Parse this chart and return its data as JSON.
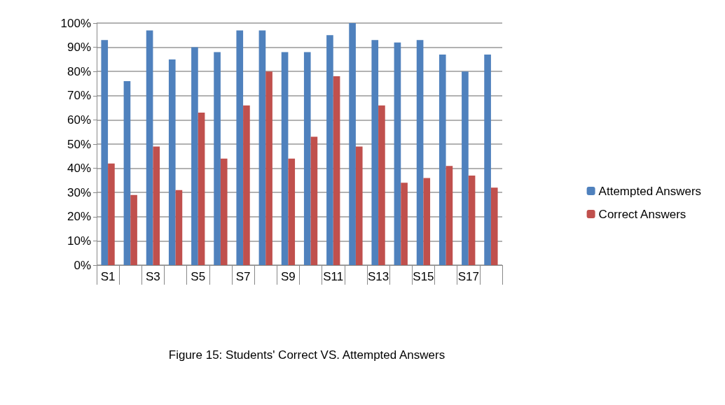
{
  "chart_data": {
    "type": "bar",
    "title": "Figure 15: Students' Correct VS. Attempted Answers",
    "categories": [
      "S1",
      null,
      "S3",
      null,
      "S5",
      null,
      "S7",
      null,
      "S9",
      null,
      "S11",
      null,
      "S13",
      null,
      "S15",
      null,
      "S17",
      null
    ],
    "series": [
      {
        "name": "Attempted Answers",
        "color": "#4f81bd",
        "values": [
          93,
          76,
          97,
          85,
          90,
          88,
          97,
          97,
          88,
          88,
          95,
          100,
          93,
          92,
          93,
          87,
          80,
          87
        ]
      },
      {
        "name": "Correct Answers",
        "color": "#c0504d",
        "values": [
          42,
          29,
          49,
          31,
          63,
          44,
          66,
          80,
          44,
          53,
          78,
          49,
          66,
          34,
          36,
          41,
          37,
          32
        ]
      }
    ],
    "ylim": [
      0,
      100
    ],
    "yticks": [
      {
        "value": 0,
        "label": "0%"
      },
      {
        "value": 10,
        "label": "10%"
      },
      {
        "value": 20,
        "label": "20%"
      },
      {
        "value": 30,
        "label": "30%"
      },
      {
        "value": 40,
        "label": "40%"
      },
      {
        "value": 50,
        "label": "50%"
      },
      {
        "value": 60,
        "label": "60%"
      },
      {
        "value": 70,
        "label": "70%"
      },
      {
        "value": 80,
        "label": "80%"
      },
      {
        "value": 90,
        "label": "90%"
      },
      {
        "value": 100,
        "label": "100%"
      }
    ],
    "grid": "y",
    "legend": "right"
  }
}
